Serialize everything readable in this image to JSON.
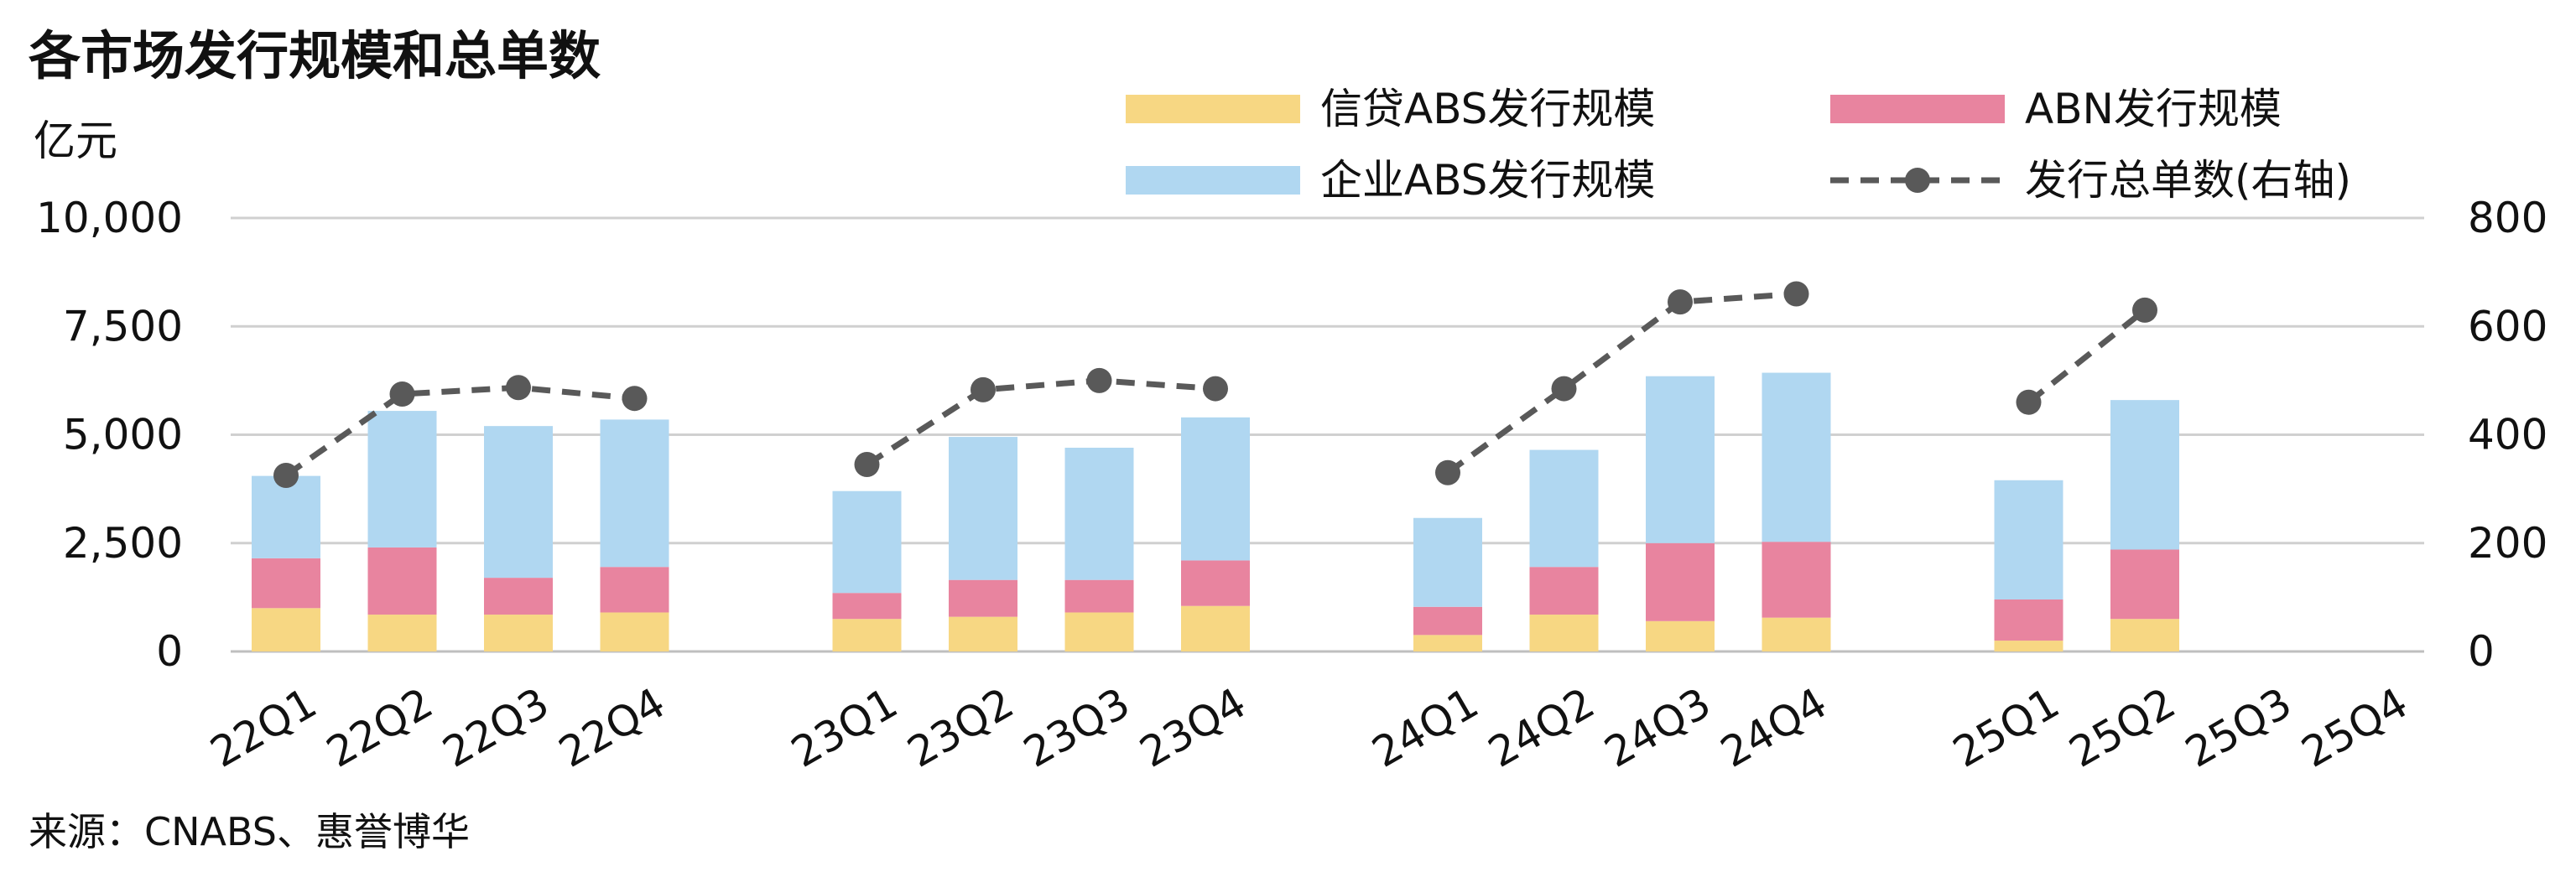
{
  "chart_data": {
    "type": "bar",
    "title": "各市场发行规模和总单数",
    "ylabel_left": "亿元",
    "ylabel_right": "",
    "source": "来源：CNABS、惠誉博华",
    "categories": [
      "22Q1",
      "22Q2",
      "22Q3",
      "22Q4",
      "23Q1",
      "23Q2",
      "23Q3",
      "23Q4",
      "24Q1",
      "24Q2",
      "24Q3",
      "24Q4",
      "25Q1",
      "25Q2",
      "25Q3",
      "25Q4"
    ],
    "ylim_left": [
      0,
      10000
    ],
    "ylim_right": [
      0,
      800
    ],
    "yticks_left": [
      "0",
      "2,500",
      "5,000",
      "7,500",
      "10,000"
    ],
    "yticks_right": [
      "0",
      "200",
      "400",
      "600",
      "800"
    ],
    "stacked": true,
    "series": [
      {
        "name": "信贷ABS发行规模",
        "axis": "left",
        "kind": "bar",
        "color": "#F7D783",
        "values": [
          1000,
          850,
          850,
          900,
          750,
          800,
          900,
          1050,
          380,
          850,
          700,
          780,
          250,
          750,
          null,
          null
        ]
      },
      {
        "name": "ABN发行规模",
        "axis": "left",
        "kind": "bar",
        "color": "#E8849F",
        "values": [
          1150,
          1550,
          850,
          1050,
          600,
          850,
          750,
          1050,
          650,
          1100,
          1800,
          1750,
          950,
          1600,
          null,
          null
        ]
      },
      {
        "name": "企业ABS发行规模",
        "axis": "left",
        "kind": "bar",
        "color": "#B0D7F1",
        "values": [
          1900,
          3150,
          3500,
          3400,
          2350,
          3300,
          3050,
          3300,
          2050,
          2700,
          3850,
          3900,
          2750,
          3450,
          null,
          null
        ]
      },
      {
        "name": "发行总单数(右轴)",
        "axis": "right",
        "kind": "line",
        "color": "#595959",
        "values": [
          325,
          475,
          487,
          467,
          345,
          483,
          500,
          485,
          330,
          485,
          645,
          660,
          460,
          630,
          null,
          null
        ]
      }
    ],
    "grid": true,
    "legend": "top-right"
  }
}
